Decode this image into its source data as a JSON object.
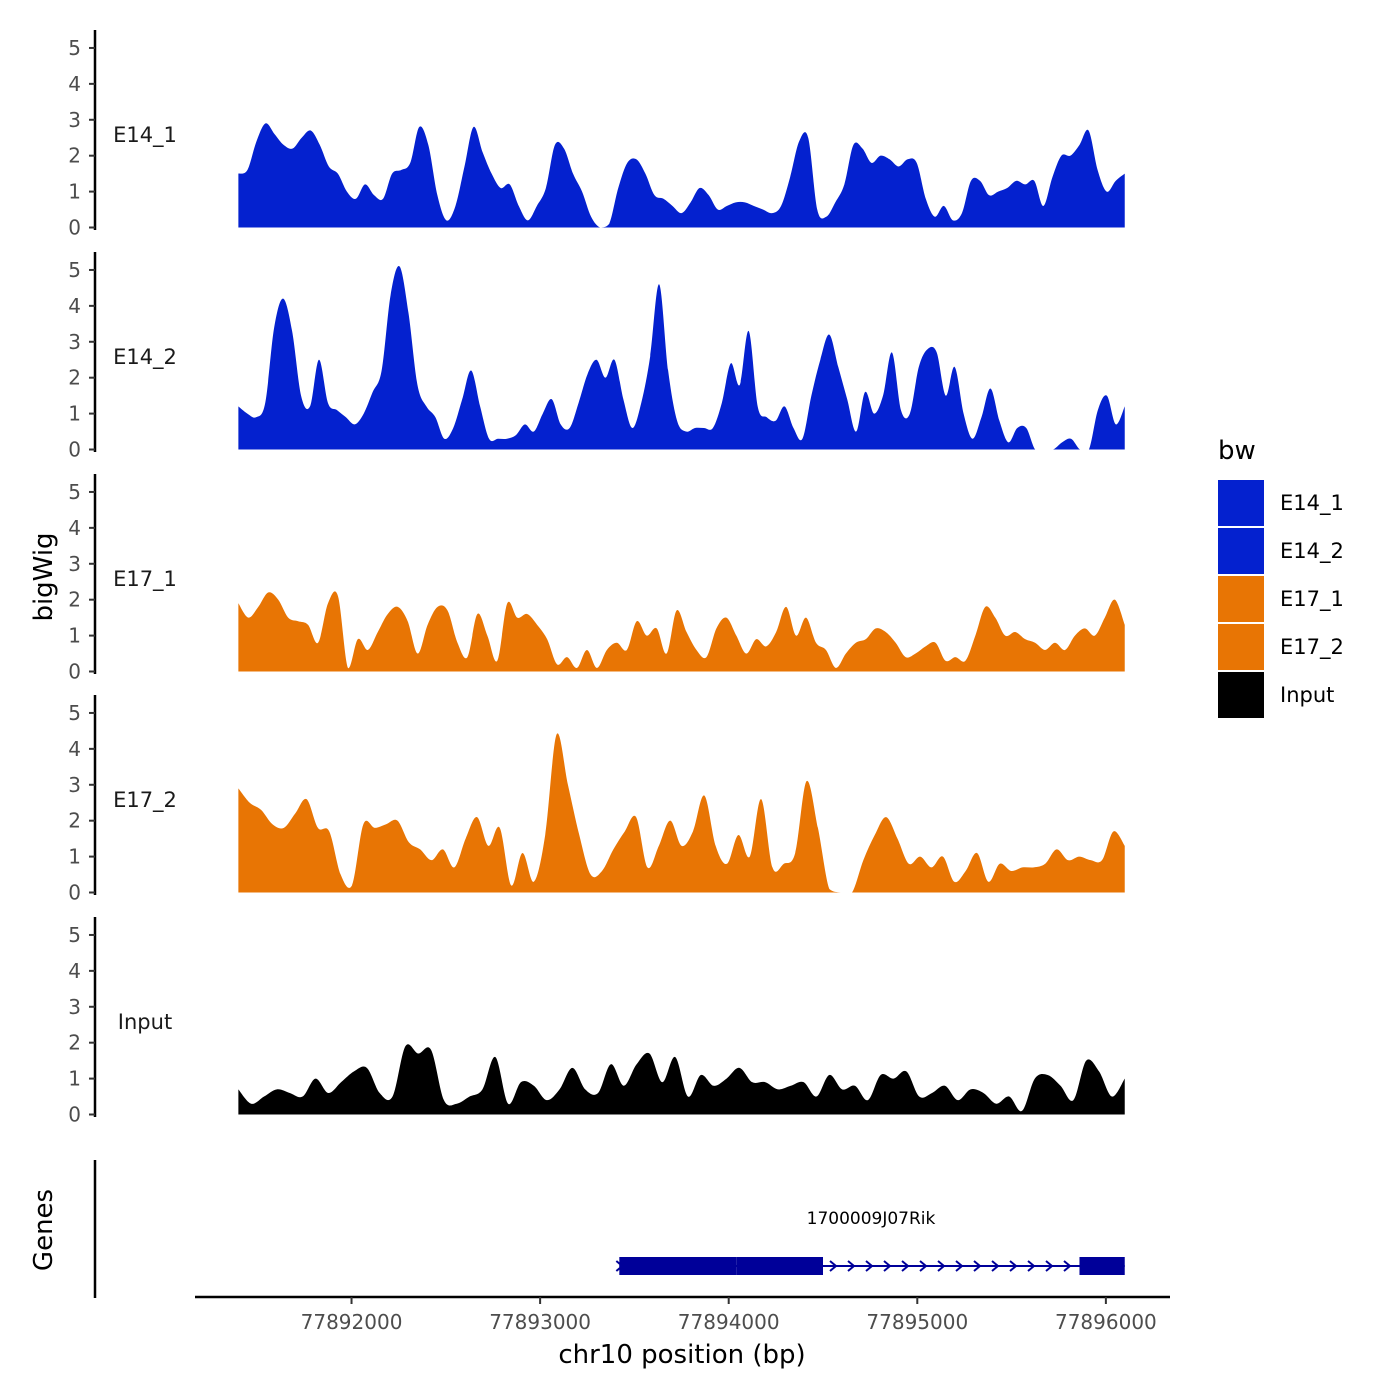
{
  "chart_data": {
    "type": "area",
    "xlabel": "chr10 position (bp)",
    "ylabel": "bigWig",
    "genes_label": "Genes",
    "x_range": [
      77891400,
      77896100
    ],
    "xlim": [
      77891170,
      77896340
    ],
    "x_ticks": [
      77892000,
      77893000,
      77894000,
      77895000,
      77896000
    ],
    "x_tick_labels": [
      "77892000",
      "77893000",
      "77894000",
      "77895000",
      "77896000"
    ],
    "ylim": [
      0,
      5.5
    ],
    "y_ticks": [
      0,
      1,
      2,
      3,
      4,
      5
    ],
    "y_tick_labels": [
      "0",
      "1",
      "2",
      "3",
      "4",
      "5"
    ],
    "legend": {
      "title": "bw",
      "entries": [
        {
          "label": "E14_1",
          "color": "#0421CF"
        },
        {
          "label": "E14_2",
          "color": "#0421CF"
        },
        {
          "label": "E17_1",
          "color": "#E87504"
        },
        {
          "label": "E17_2",
          "color": "#E87504"
        },
        {
          "label": "Input",
          "color": "#000000"
        }
      ]
    },
    "tracks": [
      {
        "name": "E14_1",
        "color": "#0421CF",
        "values": [
          1.5,
          1.6,
          2.4,
          2.9,
          2.6,
          2.3,
          2.2,
          2.5,
          2.7,
          2.3,
          1.7,
          1.5,
          1.0,
          0.8,
          1.2,
          0.9,
          0.8,
          1.5,
          1.6,
          1.8,
          2.8,
          2.3,
          0.9,
          0.2,
          0.6,
          1.7,
          2.8,
          2.1,
          1.5,
          1.1,
          1.2,
          0.6,
          0.2,
          0.6,
          1.1,
          2.3,
          2.2,
          1.5,
          1.0,
          0.3,
          0.0,
          0.1,
          1.1,
          1.8,
          1.9,
          1.5,
          0.9,
          0.8,
          0.6,
          0.4,
          0.7,
          1.1,
          0.9,
          0.5,
          0.6,
          0.7,
          0.7,
          0.6,
          0.5,
          0.4,
          0.6,
          1.4,
          2.4,
          2.5,
          0.5,
          0.3,
          0.7,
          1.2,
          2.3,
          2.2,
          1.8,
          2.0,
          1.9,
          1.7,
          1.9,
          1.8,
          0.8,
          0.3,
          0.6,
          0.2,
          0.4,
          1.3,
          1.3,
          0.9,
          1.0,
          1.1,
          1.3,
          1.2,
          1.3,
          0.6,
          1.4,
          2.0,
          2.0,
          2.3,
          2.7,
          1.6,
          1.0,
          1.3,
          1.5
        ]
      },
      {
        "name": "E14_2",
        "color": "#0421CF",
        "values": [
          1.2,
          1.0,
          0.9,
          1.3,
          3.4,
          4.2,
          3.3,
          1.5,
          1.2,
          2.5,
          1.3,
          1.1,
          0.9,
          0.7,
          1.0,
          1.6,
          2.2,
          4.3,
          5.1,
          3.8,
          1.8,
          1.2,
          0.9,
          0.3,
          0.6,
          1.4,
          2.2,
          1.2,
          0.3,
          0.3,
          0.3,
          0.4,
          0.7,
          0.5,
          1.0,
          1.4,
          0.7,
          0.6,
          1.3,
          2.1,
          2.5,
          2.0,
          2.5,
          1.4,
          0.6,
          1.3,
          2.6,
          4.6,
          2.2,
          0.8,
          0.5,
          0.6,
          0.6,
          0.6,
          1.3,
          2.4,
          1.8,
          3.3,
          1.2,
          0.9,
          0.8,
          1.2,
          0.6,
          0.3,
          1.5,
          2.5,
          3.2,
          2.3,
          1.4,
          0.5,
          1.6,
          1.0,
          1.5,
          2.7,
          1.1,
          1.0,
          2.3,
          2.8,
          2.7,
          1.5,
          2.3,
          1.0,
          0.3,
          0.9,
          1.7,
          0.8,
          0.2,
          0.6,
          0.6,
          0.0,
          0.0,
          0.0,
          0.2,
          0.3,
          0.0,
          0.0,
          1.1,
          1.5,
          0.7,
          1.2
        ]
      },
      {
        "name": "E17_1",
        "color": "#E87504",
        "values": [
          1.9,
          1.5,
          1.8,
          2.2,
          2.0,
          1.5,
          1.4,
          1.3,
          0.8,
          1.9,
          2.1,
          0.1,
          0.9,
          0.6,
          1.1,
          1.6,
          1.8,
          1.4,
          0.5,
          1.3,
          1.8,
          1.7,
          0.8,
          0.4,
          1.6,
          1.0,
          0.3,
          1.9,
          1.5,
          1.6,
          1.3,
          0.9,
          0.2,
          0.4,
          0.1,
          0.6,
          0.1,
          0.6,
          0.8,
          0.6,
          1.4,
          1.0,
          1.2,
          0.5,
          1.7,
          1.1,
          0.6,
          0.4,
          1.2,
          1.5,
          1.0,
          0.5,
          0.9,
          0.7,
          1.1,
          1.8,
          1.0,
          1.5,
          0.8,
          0.6,
          0.1,
          0.5,
          0.8,
          0.9,
          1.2,
          1.1,
          0.8,
          0.4,
          0.5,
          0.7,
          0.8,
          0.3,
          0.4,
          0.3,
          1.0,
          1.8,
          1.5,
          1.0,
          1.1,
          0.9,
          0.8,
          0.6,
          0.8,
          0.6,
          1.0,
          1.2,
          1.0,
          1.5,
          2.0,
          1.3
        ]
      },
      {
        "name": "E17_2",
        "color": "#E87504",
        "values": [
          2.9,
          2.5,
          2.3,
          1.9,
          1.8,
          2.2,
          2.6,
          1.8,
          1.7,
          0.5,
          0.2,
          1.9,
          1.8,
          1.9,
          2.0,
          1.4,
          1.2,
          0.9,
          1.2,
          0.7,
          1.5,
          2.1,
          1.3,
          1.8,
          0.2,
          1.1,
          0.3,
          1.6,
          4.4,
          3.0,
          1.6,
          0.5,
          0.6,
          1.2,
          1.7,
          2.1,
          0.7,
          1.3,
          2.0,
          1.3,
          1.7,
          2.7,
          1.3,
          0.8,
          1.6,
          1.0,
          2.6,
          0.7,
          0.8,
          1.1,
          3.1,
          1.8,
          0.1,
          0.0,
          0.0,
          0.9,
          1.6,
          2.1,
          1.5,
          0.8,
          1.0,
          0.7,
          1.0,
          0.3,
          0.6,
          1.1,
          0.3,
          0.8,
          0.6,
          0.7,
          0.7,
          0.8,
          1.2,
          0.9,
          1.0,
          0.9,
          0.9,
          1.7,
          1.3
        ]
      },
      {
        "name": "Input",
        "color": "#000000",
        "values": [
          0.7,
          0.3,
          0.5,
          0.7,
          0.6,
          0.5,
          1.0,
          0.6,
          0.9,
          1.2,
          1.3,
          0.6,
          0.5,
          1.9,
          1.7,
          1.8,
          0.4,
          0.3,
          0.5,
          0.7,
          1.6,
          0.3,
          0.9,
          0.8,
          0.4,
          0.7,
          1.3,
          0.7,
          0.6,
          1.4,
          0.8,
          1.4,
          1.7,
          0.9,
          1.6,
          0.5,
          1.1,
          0.8,
          1.0,
          1.3,
          0.9,
          0.9,
          0.7,
          0.8,
          0.9,
          0.5,
          1.1,
          0.7,
          0.8,
          0.4,
          1.1,
          1.0,
          1.2,
          0.5,
          0.6,
          0.8,
          0.4,
          0.7,
          0.6,
          0.3,
          0.5,
          0.1,
          1.0,
          1.1,
          0.8,
          0.4,
          1.5,
          1.2,
          0.5,
          1.0
        ]
      }
    ],
    "gene": {
      "name": "1700009J07Rik",
      "strand": "+",
      "start": 77893420,
      "end": 77896100,
      "thick_blocks": [
        [
          77893420,
          77894040
        ],
        [
          77894040,
          77894500
        ],
        [
          77895860,
          77896100
        ]
      ],
      "color": "#000099"
    }
  }
}
